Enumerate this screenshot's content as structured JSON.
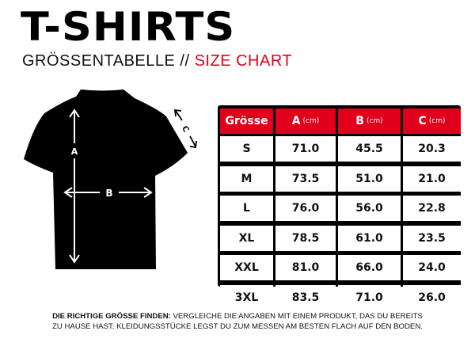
{
  "title": "T-SHIRTS",
  "subtitle": {
    "de": "GRÖSSENTABELLE //",
    "en": "SIZE CHART"
  },
  "colors": {
    "accent": "#e0001b",
    "text": "#000000"
  },
  "diagram": {
    "labels": {
      "a": "A",
      "b": "B",
      "c": "C"
    }
  },
  "table": {
    "headers": [
      {
        "label": "Grösse",
        "unit": ""
      },
      {
        "label": "A",
        "unit": "(cm)"
      },
      {
        "label": "B",
        "unit": "(cm)"
      },
      {
        "label": "C",
        "unit": "(cm)"
      }
    ],
    "rows": [
      [
        "S",
        "71.0",
        "45.5",
        "20.3"
      ],
      [
        "M",
        "73.5",
        "51.0",
        "21.0"
      ],
      [
        "L",
        "76.0",
        "56.0",
        "22.8"
      ],
      [
        "XL",
        "78.5",
        "61.0",
        "23.5"
      ],
      [
        "XXL",
        "81.0",
        "66.0",
        "24.0"
      ],
      [
        "3XL",
        "83.5",
        "71.0",
        "26.0"
      ]
    ]
  },
  "note": {
    "bold": "DIE RICHTIGE GRÖSSE FINDEN:",
    "line1": " VERGLEICHE DIE ANGABEN MIT EINEM PRODUKT, DAS DU BEREITS",
    "line2": "ZU HAUSE HAST. KLEIDUNGSSTÜCKE LEGST DU ZUM MESSEN AM BESTEN FLACH AUF DEN BODEN."
  }
}
